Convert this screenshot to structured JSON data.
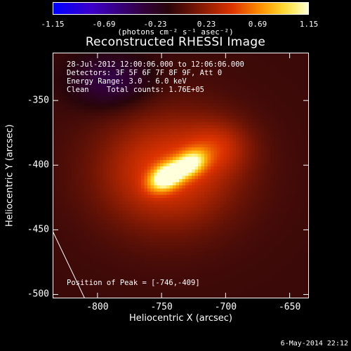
{
  "colorbar": {
    "ticks": [
      "-1.15",
      "-0.69",
      "-0.23",
      "0.23",
      "0.69",
      "1.15"
    ],
    "units_text": "(photons cm⁻² s⁻¹ asec⁻²)",
    "range": [
      -1.15,
      1.15
    ],
    "colormap": "red-temperature with blue negatives"
  },
  "title": "Reconstructed RHESSI Image",
  "info_lines": [
    "28-Jul-2012 12:00:06.000 to 12:06:06.000",
    "Detectors: 3F 5F 6F 7F 8F 9F, Att 0",
    "Energy Range: 3.0 - 6.0 keV",
    "Clean    Total counts: 1.76E+05"
  ],
  "peak_text": "Position of Peak = [-746,-409]",
  "timestamp": "6-May-2014 22:12",
  "chart_data": {
    "type": "heatmap",
    "title": "Reconstructed RHESSI Image",
    "xlabel": "Heliocentric X (arcsec)",
    "ylabel": "Heliocentric Y (arcsec)",
    "xlim": [
      -835,
      -635
    ],
    "ylim": [
      -503,
      -313
    ],
    "x_ticks": [
      -800,
      -750,
      -700,
      -650
    ],
    "y_ticks": [
      -350,
      -400,
      -450,
      -500
    ],
    "x_tick_labels": [
      "-800",
      "-750",
      "-700",
      "-650"
    ],
    "y_tick_labels": [
      "-350",
      "-400",
      "-450",
      "-500"
    ],
    "peak_position": [
      -746,
      -409
    ],
    "peak_value": 1.15,
    "sources": [
      {
        "x": -746,
        "y": -409,
        "amplitude": 1.15
      },
      {
        "x": -728,
        "y": -399,
        "amplitude": 0.85
      }
    ],
    "limb_line": [
      [
        -835,
        -451
      ],
      [
        -810,
        -503
      ]
    ]
  }
}
